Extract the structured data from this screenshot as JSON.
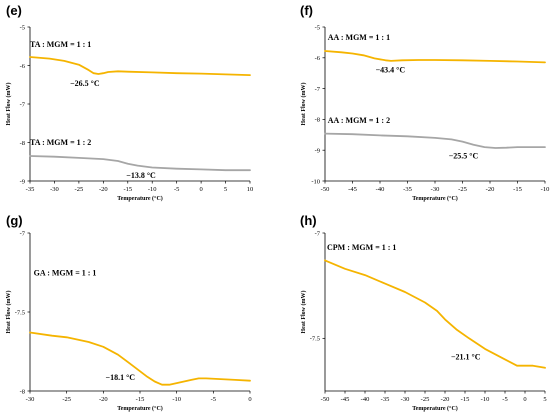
{
  "chart_data": [
    {
      "type": "line",
      "panel": "(e)",
      "xlabel": "Temperature (°C)",
      "ylabel": "Heat Flow (mW)",
      "xlim": [
        -35,
        10
      ],
      "ylim": [
        -9,
        -5
      ],
      "xticks": [
        -35,
        -30,
        -25,
        -20,
        -15,
        -10,
        -5,
        0,
        5,
        10
      ],
      "yticks": [
        -5,
        -6,
        -7,
        -8,
        -9
      ],
      "series": [
        {
          "color": "#f5b400",
          "x": [
            -35,
            -31,
            -28,
            -25,
            -23,
            -22,
            -21,
            -20,
            -19,
            -17,
            -15,
            -10,
            -5,
            0,
            5,
            10
          ],
          "y": [
            -5.78,
            -5.82,
            -5.88,
            -5.98,
            -6.12,
            -6.2,
            -6.22,
            -6.2,
            -6.17,
            -6.15,
            -6.16,
            -6.18,
            -6.2,
            -6.21,
            -6.23,
            -6.25
          ]
        },
        {
          "color": "#a6a6a6",
          "x": [
            -35,
            -30,
            -25,
            -20,
            -17,
            -15,
            -13,
            -10,
            -5,
            0,
            5,
            10
          ],
          "y": [
            -8.35,
            -8.37,
            -8.4,
            -8.43,
            -8.48,
            -8.55,
            -8.6,
            -8.65,
            -8.68,
            -8.7,
            -8.72,
            -8.72
          ]
        }
      ],
      "annotations": [
        {
          "text": "TA : MGM = 1 : 1",
          "x": -35,
          "y": -5.52
        },
        {
          "text": "−26.5 °C",
          "x": -26.8,
          "y": -6.53
        },
        {
          "text": "TA : MGM = 1 : 2",
          "x": -35,
          "y": -8.07
        },
        {
          "text": "−13.8 °C",
          "x": -15.3,
          "y": -8.92
        }
      ]
    },
    {
      "type": "line",
      "panel": "(f)",
      "xlabel": "Temperature (°C)",
      "ylabel": "Heat Flow (mW)",
      "xlim": [
        -50,
        -10
      ],
      "ylim": [
        -10,
        -5
      ],
      "xticks": [
        -50,
        -45,
        -40,
        -35,
        -30,
        -25,
        -20,
        -15,
        -10
      ],
      "yticks": [
        -5,
        -6,
        -7,
        -8,
        -9,
        -10
      ],
      "series": [
        {
          "color": "#f5b400",
          "x": [
            -50,
            -47,
            -45,
            -43,
            -41,
            -39,
            -38,
            -36,
            -33,
            -30,
            -25,
            -20,
            -15,
            -10
          ],
          "y": [
            -5.78,
            -5.82,
            -5.86,
            -5.92,
            -6.02,
            -6.08,
            -6.1,
            -6.08,
            -6.07,
            -6.07,
            -6.08,
            -6.1,
            -6.12,
            -6.15
          ]
        },
        {
          "color": "#a6a6a6",
          "x": [
            -50,
            -45,
            -40,
            -35,
            -30,
            -27,
            -25,
            -23,
            -21,
            -19,
            -17,
            -15,
            -10
          ],
          "y": [
            -8.46,
            -8.48,
            -8.52,
            -8.55,
            -8.6,
            -8.65,
            -8.72,
            -8.82,
            -8.9,
            -8.93,
            -8.92,
            -8.9,
            -8.9
          ]
        }
      ],
      "annotations": [
        {
          "text": "AA : MGM = 1 : 1",
          "x": -49.5,
          "y": -5.42
        },
        {
          "text": "−43.4 °C",
          "x": -40.8,
          "y": -6.47
        },
        {
          "text": "AA : MGM = 1 : 2",
          "x": -49.5,
          "y": -8.12
        },
        {
          "text": "−25.5 °C",
          "x": -27.5,
          "y": -9.27
        }
      ]
    },
    {
      "type": "line",
      "panel": "(g)",
      "xlabel": "Temperature (°C)",
      "ylabel": "Heat Flow (mW)",
      "xlim": [
        -30,
        0
      ],
      "ylim": [
        -8,
        -7
      ],
      "xticks": [
        -30,
        -25,
        -20,
        -15,
        -10,
        -5,
        0
      ],
      "yticks": [
        -7,
        -7.5,
        -8
      ],
      "ytick_labels": [
        "-7",
        "-7.5",
        "-8"
      ],
      "series": [
        {
          "color": "#f5b400",
          "x": [
            -30,
            -27,
            -25,
            -22,
            -20,
            -18,
            -16,
            -14,
            -13,
            -12,
            -11,
            -10,
            -9,
            -8,
            -7,
            -6,
            -4,
            -2,
            0
          ],
          "y": [
            -7.63,
            -7.65,
            -7.66,
            -7.69,
            -7.72,
            -7.77,
            -7.84,
            -7.91,
            -7.94,
            -7.96,
            -7.96,
            -7.95,
            -7.94,
            -7.93,
            -7.92,
            -7.92,
            -7.925,
            -7.93,
            -7.935
          ]
        }
      ],
      "annotations": [
        {
          "text": "GA : MGM = 1 : 1",
          "x": -29.5,
          "y": -7.27
        },
        {
          "text": "−18.1 °C",
          "x": -19.7,
          "y": -7.93
        }
      ]
    },
    {
      "type": "line",
      "panel": "(h)",
      "xlabel": "Temperature (°C)",
      "ylabel": "Heat Flow (mW)",
      "xlim": [
        -50,
        5
      ],
      "ylim": [
        -7.75,
        -7
      ],
      "xticks": [
        -50,
        -45,
        -40,
        -35,
        -30,
        -25,
        -20,
        -15,
        -10,
        -5,
        0,
        5
      ],
      "yticks": [
        -7,
        -7.5
      ],
      "ytick_labels": [
        "-7",
        "-7.5"
      ],
      "series": [
        {
          "color": "#f5b400",
          "x": [
            -50,
            -45,
            -40,
            -35,
            -30,
            -25,
            -22,
            -20,
            -17,
            -14,
            -10,
            -5,
            -2,
            0,
            2,
            5
          ],
          "y": [
            -7.13,
            -7.17,
            -7.2,
            -7.24,
            -7.28,
            -7.33,
            -7.37,
            -7.41,
            -7.46,
            -7.5,
            -7.55,
            -7.6,
            -7.63,
            -7.63,
            -7.63,
            -7.64
          ]
        }
      ],
      "annotations": [
        {
          "text": "CPM : MGM = 1 : 1",
          "x": -49.5,
          "y": -7.08
        },
        {
          "text": "−21.1 °C",
          "x": -18.5,
          "y": -7.6
        }
      ]
    }
  ]
}
